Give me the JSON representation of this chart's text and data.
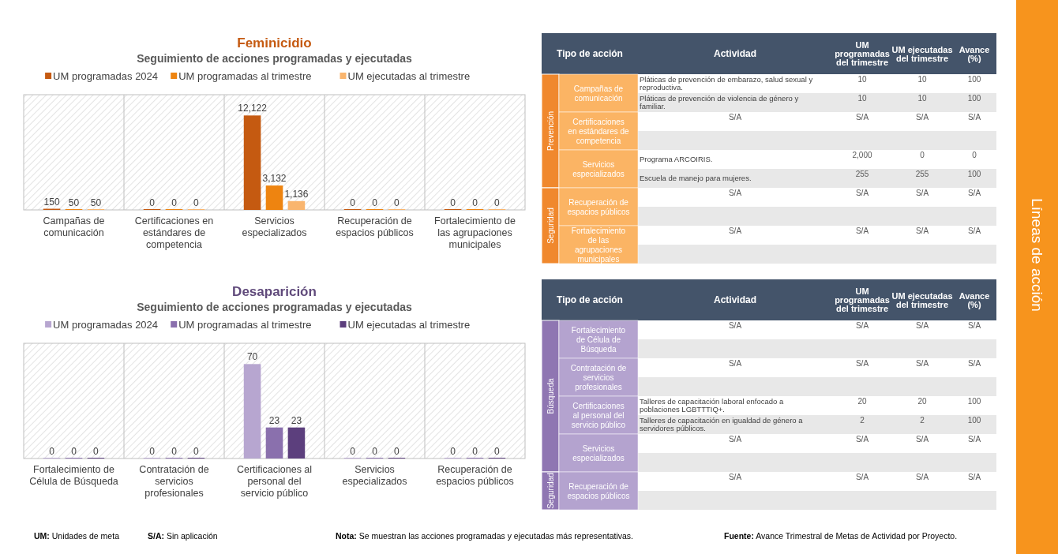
{
  "chart_data": [
    {
      "type": "bar",
      "title": "Feminicidio",
      "subtitle": "Seguimiento de acciones programadas y ejecutadas",
      "categories": [
        "Campañas de comunicación",
        "Certificaciones en estándares de competencia",
        "Servicios especializados",
        "Recuperación de espacios públicos",
        "Fortalecimiento de las agrupaciones municipales"
      ],
      "series": [
        {
          "name": "UM programadas 2024",
          "color": "#c55a11",
          "values": [
            150,
            0,
            12122,
            0,
            0
          ],
          "value_labels": [
            "150",
            "0",
            "12,122",
            "0",
            "0"
          ]
        },
        {
          "name": "UM programadas al trimestre",
          "color": "#ee8410",
          "values": [
            50,
            0,
            3132,
            0,
            0
          ],
          "value_labels": [
            "50",
            "0",
            "3,132",
            "0",
            "0"
          ]
        },
        {
          "name": "UM ejecutadas al trimestre",
          "color": "#f9b56e",
          "values": [
            50,
            0,
            1136,
            0,
            0
          ],
          "value_labels": [
            "50",
            "0",
            "1,136",
            "0",
            "0"
          ]
        }
      ],
      "legend": "top"
    },
    {
      "type": "other",
      "categories": [
        "Tipo de acción",
        "Actividad",
        "UM programadas del trimestre",
        "UM ejecutadas del trimestre",
        "Avance (%)"
      ],
      "y2_categories": [
        "Prevención",
        null,
        null,
        null,
        null,
        null,
        "Seguridad",
        null,
        null,
        null
      ],
      "y_categories": [
        "Campañas de comunicación",
        null,
        "Certificaciones en estándares de competencia",
        null,
        "Servicios especializados",
        null,
        "Recuperación de espacios públicos",
        null,
        "Fortalecimiento de las agrupaciones municipales",
        null
      ],
      "cell_labels": [
        [
          "Pláticas de prevención de embarazo, salud sexual y reproductiva.",
          "10",
          "10",
          "100"
        ],
        [
          "Pláticas de prevención de violencia de género y familiar.",
          "10",
          "10",
          "100"
        ],
        [
          "S/A",
          "S/A",
          "S/A",
          "S/A"
        ],
        [
          null,
          null,
          null,
          null
        ],
        [
          "Programa ARCOIRIS.",
          "2,000",
          "0",
          "0"
        ],
        [
          "Escuela de manejo para mujeres.",
          "255",
          "255",
          "100"
        ],
        [
          "S/A",
          "S/A",
          "S/A",
          "S/A"
        ],
        [
          null,
          null,
          null,
          null
        ],
        [
          "S/A",
          "S/A",
          "S/A",
          "S/A"
        ],
        [
          null,
          null,
          null,
          null
        ]
      ]
    },
    {
      "type": "bar",
      "title": "Desaparición",
      "subtitle": "Seguimiento de acciones programadas y ejecutadas",
      "categories": [
        "Fortalecimiento de Célula de Búsqueda",
        "Contratación de servicios profesionales",
        "Certificaciones al personal del servicio público",
        "Servicios especializados",
        "Recuperación de espacios públicos"
      ],
      "series": [
        {
          "name": "UM programadas 2024",
          "color": "#b7a6d0",
          "values": [
            0,
            0,
            70,
            0,
            0
          ]
        },
        {
          "name": "UM programadas al trimestre",
          "color": "#8a70ad",
          "values": [
            0,
            0,
            23,
            0,
            0
          ]
        },
        {
          "name": "UM ejecutadas al trimestre",
          "color": "#5c3f7d",
          "values": [
            0,
            0,
            23,
            0,
            0
          ]
        }
      ],
      "data_labels": true,
      "legend": "top"
    },
    {
      "type": "other",
      "categories": [
        "Tipo de acción",
        "Actividad",
        "UM programadas del trimestre",
        "UM ejecutadas del trimestre",
        "Avance (%)"
      ],
      "y2_categories": [
        "Búsqueda",
        null,
        null,
        null,
        null,
        null,
        null,
        null,
        "Seguridad",
        null
      ],
      "y_categories": [
        "Fortalecimiento de Célula de Búsqueda",
        null,
        "Contratación de servicios profesionales",
        null,
        "Certificaciones al personal del servicio público",
        null,
        "Servicios especializados",
        null,
        "Recuperación de espacios públicos",
        null
      ],
      "cell_labels": [
        [
          "S/A",
          "S/A",
          "S/A",
          "S/A"
        ],
        [
          null,
          null,
          null,
          null
        ],
        [
          "S/A",
          "S/A",
          "S/A",
          "S/A"
        ],
        [
          null,
          null,
          null,
          null
        ],
        [
          "Talleres de capacitación laboral enfocado a poblaciones LGBTTTIQ+.",
          "20",
          "20",
          "100"
        ],
        [
          "Talleres de capacitación en igualdad de género a servidores públicos.",
          "2",
          "2",
          "100"
        ],
        [
          "S/A",
          "S/A",
          "S/A",
          "S/A"
        ],
        [
          null,
          null,
          null,
          null
        ],
        [
          "S/A",
          "S/A",
          "S/A",
          "S/A"
        ],
        [
          null,
          null,
          null,
          null
        ]
      ]
    },
    {
      "type": "other",
      "title": "Líneas de acción",
      "color": "#f7941d",
      "annotations": [
        "UM: Unidades de meta",
        "S/A: Sin aplicación",
        "Nota: Se muestran las acciones programadas y ejecutadas más representativas.",
        "Fuente: Avance Trimestral de Metas de Actividad por Proyecto."
      ]
    }
  ]
}
